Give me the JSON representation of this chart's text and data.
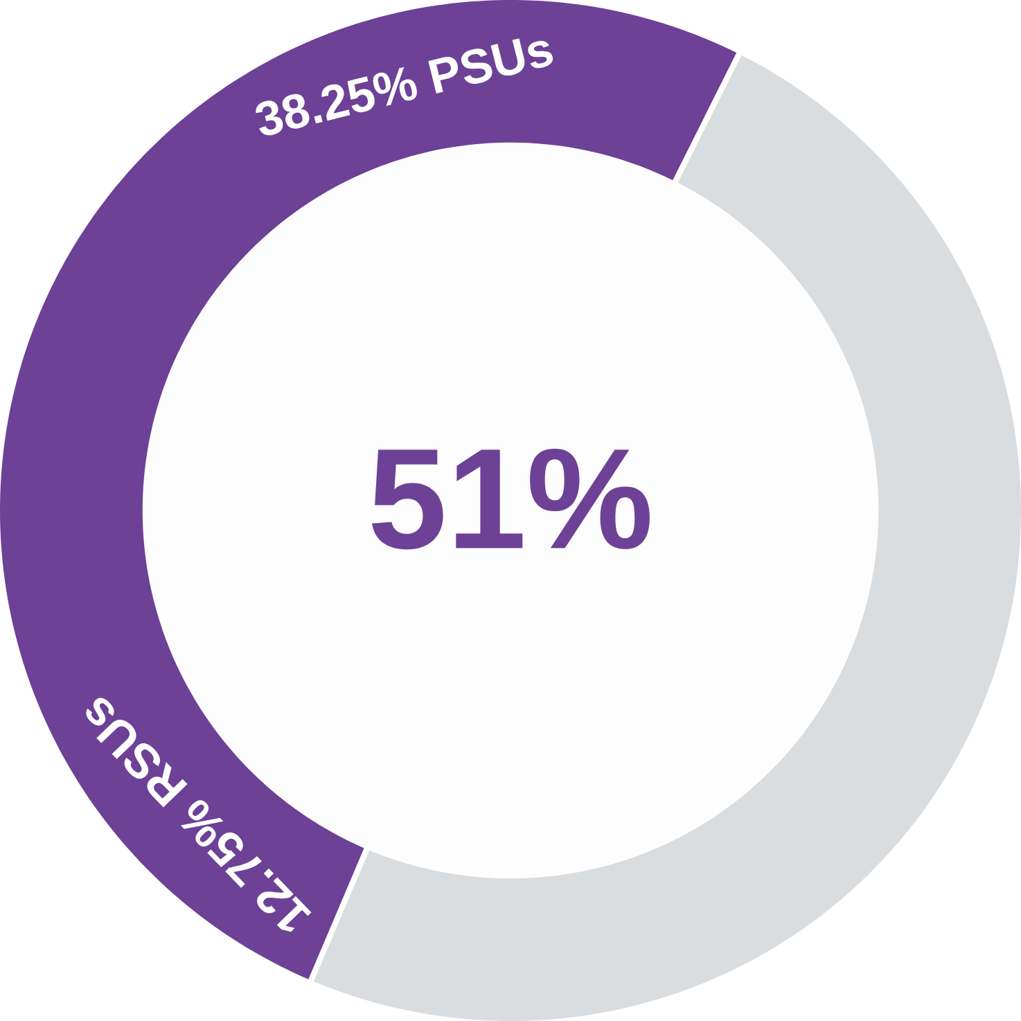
{
  "chart_data": {
    "type": "donut",
    "categories": [
      "RSUs",
      "PSUs",
      null,
      null
    ],
    "values": [
      12.75,
      38.25,
      23,
      26
    ],
    "colors": [
      "#6d4196",
      "#6d4196",
      "#dadde0",
      "#dadde0"
    ],
    "value_labels": [
      "12.75%",
      "38.25%",
      null,
      null
    ],
    "annotations": [
      "51%"
    ]
  }
}
